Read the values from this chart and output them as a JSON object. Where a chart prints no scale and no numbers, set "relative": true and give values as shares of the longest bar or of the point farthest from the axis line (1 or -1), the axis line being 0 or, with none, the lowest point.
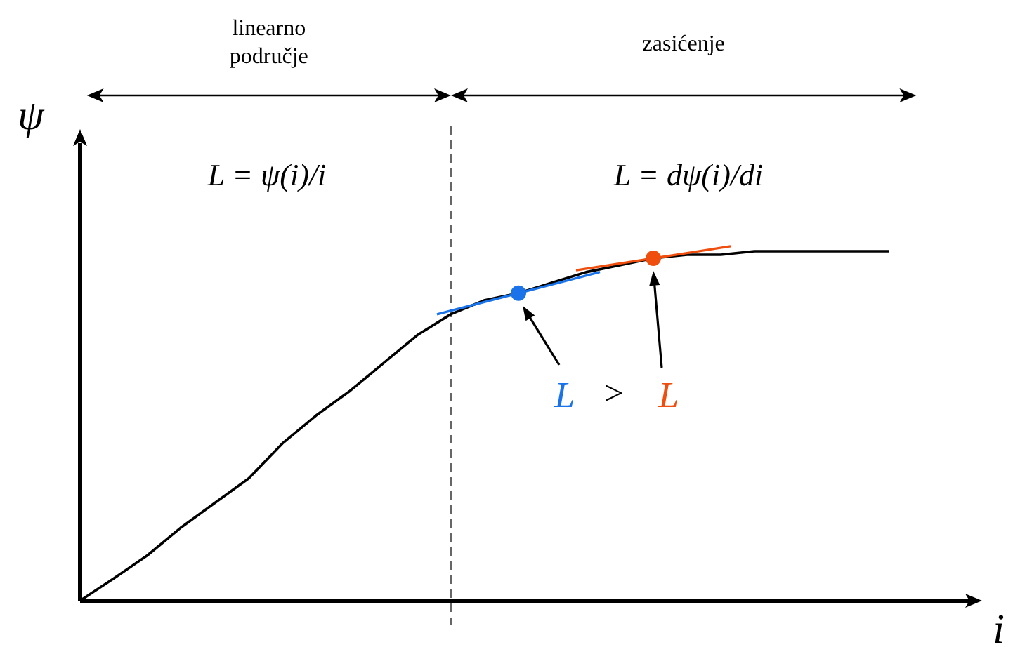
{
  "chart_data": {
    "type": "line",
    "relative": true,
    "xlabel": "i",
    "ylabel": "ψ",
    "categories": [
      null,
      null,
      null,
      null,
      null,
      null,
      null,
      null,
      null,
      null,
      null,
      null,
      null,
      null,
      null,
      null,
      null,
      null,
      null,
      null,
      null,
      null,
      null,
      null,
      null
    ],
    "series": [
      {
        "color": "#000000",
        "values": [
          0,
          0.064,
          0.13,
          0.21,
          0.28,
          0.35,
          0.45,
          0.53,
          0.6,
          0.68,
          0.76,
          0.82,
          0.86,
          0.88,
          0.91,
          0.94,
          0.96,
          0.98,
          0.99,
          0.99,
          1,
          1,
          1,
          1,
          1
        ]
      }
    ],
    "annotations": [
      "linearno područje",
      "zasićenje",
      "L = ψ(i)/i",
      "L = dψ(i)/di",
      "L",
      ">",
      "L"
    ]
  }
}
